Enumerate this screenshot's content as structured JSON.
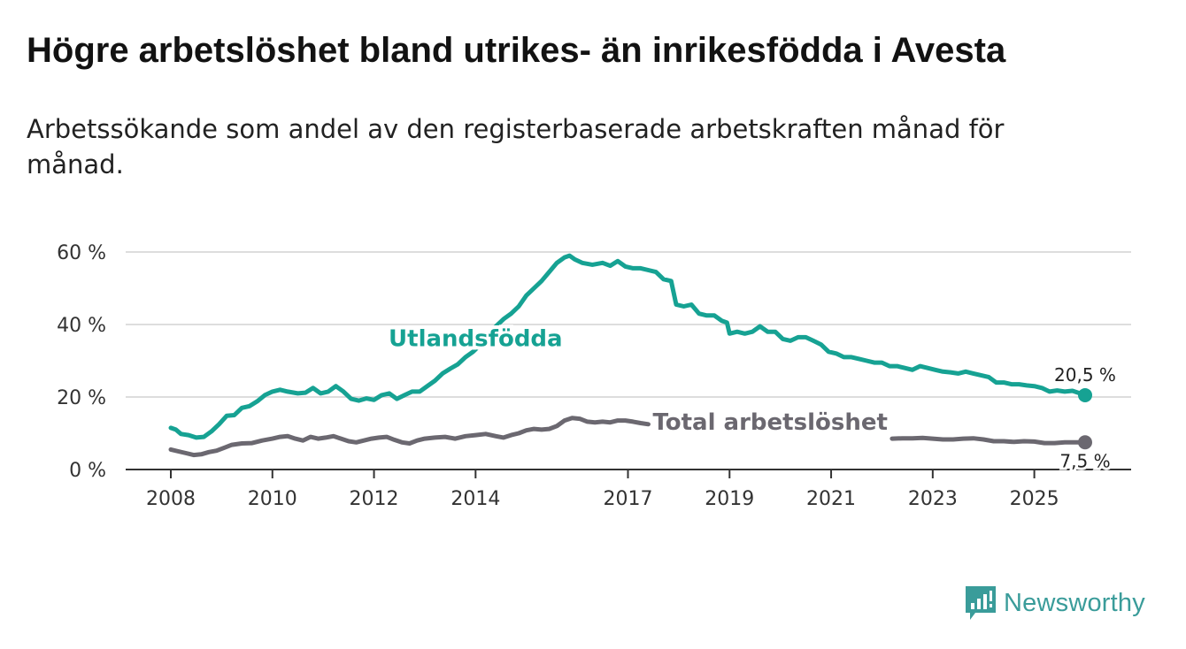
{
  "title": "Högre arbetslöshet bland utrikes- än inrikesfödda i Avesta",
  "subtitle": "Arbetssökande som andel av den registerbaserade arbetskraften månad för månad.",
  "brand": {
    "name": "Newsworthy",
    "icon": "newsworthy-logo-icon"
  },
  "colors": {
    "foreign": "#16a293",
    "total": "#6b6870",
    "grid": "#dddddd",
    "axis": "#333333",
    "brand": "#3a9c9a"
  },
  "chart_data": {
    "type": "line",
    "title": "Högre arbetslöshet bland utrikes- än inrikesfödda i Avesta",
    "xlabel": "",
    "ylabel": "",
    "xlim": [
      2008,
      2026.4
    ],
    "ylim": [
      0,
      60
    ],
    "x_ticks": [
      2008,
      2010,
      2012,
      2014,
      2017,
      2019,
      2021,
      2023,
      2025
    ],
    "x_tick_labels": [
      "2008",
      "2010",
      "2012",
      "2014",
      "2017",
      "2019",
      "2021",
      "2023",
      "2025"
    ],
    "y_ticks": [
      0,
      20,
      40,
      60
    ],
    "y_tick_labels": [
      "0 %",
      "20 %",
      "40 %",
      "60 %"
    ],
    "grid": true,
    "series": [
      {
        "name": "Utlandsfödda",
        "color": "#16a293",
        "end_label": "20,5 %",
        "points": [
          [
            2008.0,
            11.5
          ],
          [
            2008.1,
            11.0
          ],
          [
            2008.2,
            9.8
          ],
          [
            2008.35,
            9.5
          ],
          [
            2008.5,
            8.8
          ],
          [
            2008.65,
            9.0
          ],
          [
            2008.8,
            10.5
          ],
          [
            2008.95,
            12.5
          ],
          [
            2009.1,
            14.8
          ],
          [
            2009.25,
            15.0
          ],
          [
            2009.4,
            17.0
          ],
          [
            2009.55,
            17.5
          ],
          [
            2009.7,
            18.8
          ],
          [
            2009.85,
            20.5
          ],
          [
            2010.0,
            21.5
          ],
          [
            2010.15,
            22.0
          ],
          [
            2010.3,
            21.5
          ],
          [
            2010.5,
            21.0
          ],
          [
            2010.65,
            21.2
          ],
          [
            2010.8,
            22.5
          ],
          [
            2010.95,
            21.0
          ],
          [
            2011.1,
            21.5
          ],
          [
            2011.25,
            23.0
          ],
          [
            2011.4,
            21.5
          ],
          [
            2011.55,
            19.5
          ],
          [
            2011.7,
            19.0
          ],
          [
            2011.85,
            19.6
          ],
          [
            2012.0,
            19.2
          ],
          [
            2012.15,
            20.5
          ],
          [
            2012.3,
            21.0
          ],
          [
            2012.45,
            19.5
          ],
          [
            2012.6,
            20.5
          ],
          [
            2012.75,
            21.5
          ],
          [
            2012.9,
            21.5
          ],
          [
            2013.05,
            23.0
          ],
          [
            2013.2,
            24.5
          ],
          [
            2013.35,
            26.5
          ],
          [
            2013.5,
            27.8
          ],
          [
            2013.65,
            29.0
          ],
          [
            2013.8,
            31.0
          ],
          [
            2013.95,
            32.5
          ],
          [
            2014.1,
            34.5
          ],
          [
            2014.25,
            37.0
          ],
          [
            2014.4,
            39.5
          ],
          [
            2014.55,
            41.5
          ],
          [
            2014.7,
            43.0
          ],
          [
            2014.85,
            45.0
          ],
          [
            2015.0,
            48.0
          ],
          [
            2015.15,
            50.0
          ],
          [
            2015.3,
            52.0
          ],
          [
            2015.45,
            54.5
          ],
          [
            2015.6,
            57.0
          ],
          [
            2015.75,
            58.5
          ],
          [
            2015.85,
            59.0
          ],
          [
            2015.95,
            58.0
          ],
          [
            2016.1,
            57.0
          ],
          [
            2016.3,
            56.5
          ],
          [
            2016.5,
            57.0
          ],
          [
            2016.65,
            56.2
          ],
          [
            2016.8,
            57.5
          ],
          [
            2016.95,
            56.0
          ],
          [
            2017.1,
            55.5
          ],
          [
            2017.25,
            55.5
          ],
          [
            2017.4,
            55.0
          ],
          [
            2017.55,
            54.5
          ],
          [
            2017.7,
            52.5
          ],
          [
            2017.85,
            52.0
          ],
          [
            2017.95,
            45.5
          ],
          [
            2018.1,
            45.0
          ],
          [
            2018.25,
            45.5
          ],
          [
            2018.4,
            43.0
          ],
          [
            2018.55,
            42.5
          ],
          [
            2018.7,
            42.5
          ],
          [
            2018.85,
            41.0
          ],
          [
            2018.95,
            40.5
          ],
          [
            2019.0,
            37.5
          ],
          [
            2019.15,
            38.0
          ],
          [
            2019.3,
            37.5
          ],
          [
            2019.45,
            38.0
          ],
          [
            2019.6,
            39.5
          ],
          [
            2019.75,
            38.0
          ],
          [
            2019.9,
            38.0
          ],
          [
            2020.05,
            36.0
          ],
          [
            2020.2,
            35.5
          ],
          [
            2020.35,
            36.5
          ],
          [
            2020.5,
            36.5
          ],
          [
            2020.65,
            35.5
          ],
          [
            2020.8,
            34.5
          ],
          [
            2020.95,
            32.5
          ],
          [
            2021.1,
            32.0
          ],
          [
            2021.25,
            31.0
          ],
          [
            2021.4,
            31.0
          ],
          [
            2021.55,
            30.5
          ],
          [
            2021.7,
            30.0
          ],
          [
            2021.85,
            29.5
          ],
          [
            2022.0,
            29.5
          ],
          [
            2022.15,
            28.5
          ],
          [
            2022.3,
            28.5
          ],
          [
            2022.45,
            28.0
          ],
          [
            2022.6,
            27.5
          ],
          [
            2022.75,
            28.5
          ],
          [
            2022.9,
            28.0
          ],
          [
            2023.05,
            27.5
          ],
          [
            2023.2,
            27.0
          ],
          [
            2023.35,
            26.8
          ],
          [
            2023.5,
            26.5
          ],
          [
            2023.65,
            27.0
          ],
          [
            2023.8,
            26.5
          ],
          [
            2023.95,
            26.0
          ],
          [
            2024.1,
            25.5
          ],
          [
            2024.25,
            24.0
          ],
          [
            2024.4,
            24.0
          ],
          [
            2024.55,
            23.5
          ],
          [
            2024.7,
            23.5
          ],
          [
            2024.85,
            23.2
          ],
          [
            2025.0,
            23.0
          ],
          [
            2025.15,
            22.5
          ],
          [
            2025.3,
            21.5
          ],
          [
            2025.45,
            21.8
          ],
          [
            2025.6,
            21.5
          ],
          [
            2025.75,
            21.7
          ],
          [
            2025.9,
            21.0
          ],
          [
            2026.0,
            20.5
          ]
        ]
      },
      {
        "name": "Total arbetslöshet",
        "color": "#6b6870",
        "end_label": "7,5 %",
        "points": [
          [
            2008.0,
            5.5
          ],
          [
            2008.15,
            5.0
          ],
          [
            2008.3,
            4.5
          ],
          [
            2008.45,
            4.0
          ],
          [
            2008.6,
            4.2
          ],
          [
            2008.75,
            4.8
          ],
          [
            2008.9,
            5.2
          ],
          [
            2009.05,
            6.0
          ],
          [
            2009.2,
            6.8
          ],
          [
            2009.4,
            7.2
          ],
          [
            2009.6,
            7.3
          ],
          [
            2009.8,
            8.0
          ],
          [
            2010.0,
            8.5
          ],
          [
            2010.15,
            9.0
          ],
          [
            2010.3,
            9.2
          ],
          [
            2010.45,
            8.5
          ],
          [
            2010.6,
            8.0
          ],
          [
            2010.75,
            9.0
          ],
          [
            2010.9,
            8.5
          ],
          [
            2011.05,
            8.8
          ],
          [
            2011.2,
            9.2
          ],
          [
            2011.35,
            8.5
          ],
          [
            2011.5,
            7.8
          ],
          [
            2011.65,
            7.5
          ],
          [
            2011.8,
            8.0
          ],
          [
            2011.95,
            8.5
          ],
          [
            2012.1,
            8.8
          ],
          [
            2012.25,
            9.0
          ],
          [
            2012.4,
            8.2
          ],
          [
            2012.55,
            7.5
          ],
          [
            2012.7,
            7.2
          ],
          [
            2012.85,
            8.0
          ],
          [
            2013.0,
            8.5
          ],
          [
            2013.2,
            8.8
          ],
          [
            2013.4,
            9.0
          ],
          [
            2013.6,
            8.5
          ],
          [
            2013.8,
            9.2
          ],
          [
            2014.0,
            9.5
          ],
          [
            2014.2,
            9.8
          ],
          [
            2014.4,
            9.2
          ],
          [
            2014.55,
            8.8
          ],
          [
            2014.7,
            9.5
          ],
          [
            2014.85,
            10.0
          ],
          [
            2015.0,
            10.8
          ],
          [
            2015.15,
            11.2
          ],
          [
            2015.3,
            11.0
          ],
          [
            2015.45,
            11.2
          ],
          [
            2015.6,
            12.0
          ],
          [
            2015.75,
            13.5
          ],
          [
            2015.9,
            14.2
          ],
          [
            2016.05,
            14.0
          ],
          [
            2016.2,
            13.2
          ],
          [
            2016.35,
            13.0
          ],
          [
            2016.5,
            13.2
          ],
          [
            2016.65,
            13.0
          ],
          [
            2016.8,
            13.5
          ],
          [
            2016.95,
            13.5
          ],
          [
            2017.1,
            13.2
          ],
          [
            2017.25,
            12.8
          ],
          [
            2017.4,
            12.5
          ]
        ],
        "points_after_label": [
          [
            2022.2,
            8.5
          ],
          [
            2022.4,
            8.6
          ],
          [
            2022.6,
            8.6
          ],
          [
            2022.8,
            8.7
          ],
          [
            2023.0,
            8.5
          ],
          [
            2023.2,
            8.3
          ],
          [
            2023.4,
            8.3
          ],
          [
            2023.6,
            8.5
          ],
          [
            2023.8,
            8.6
          ],
          [
            2024.0,
            8.3
          ],
          [
            2024.2,
            7.8
          ],
          [
            2024.4,
            7.8
          ],
          [
            2024.6,
            7.6
          ],
          [
            2024.8,
            7.8
          ],
          [
            2025.0,
            7.7
          ],
          [
            2025.2,
            7.3
          ],
          [
            2025.4,
            7.3
          ],
          [
            2025.6,
            7.5
          ],
          [
            2025.8,
            7.5
          ],
          [
            2026.0,
            7.5
          ]
        ]
      }
    ],
    "annotations": [
      {
        "text": "Utlandsfödda",
        "series": "Utlandsfödda",
        "at": [
          2014.0,
          34
        ]
      },
      {
        "text": "Total arbetslöshet",
        "series": "Total arbetslöshet",
        "at": [
          2019.8,
          11
        ]
      }
    ]
  }
}
